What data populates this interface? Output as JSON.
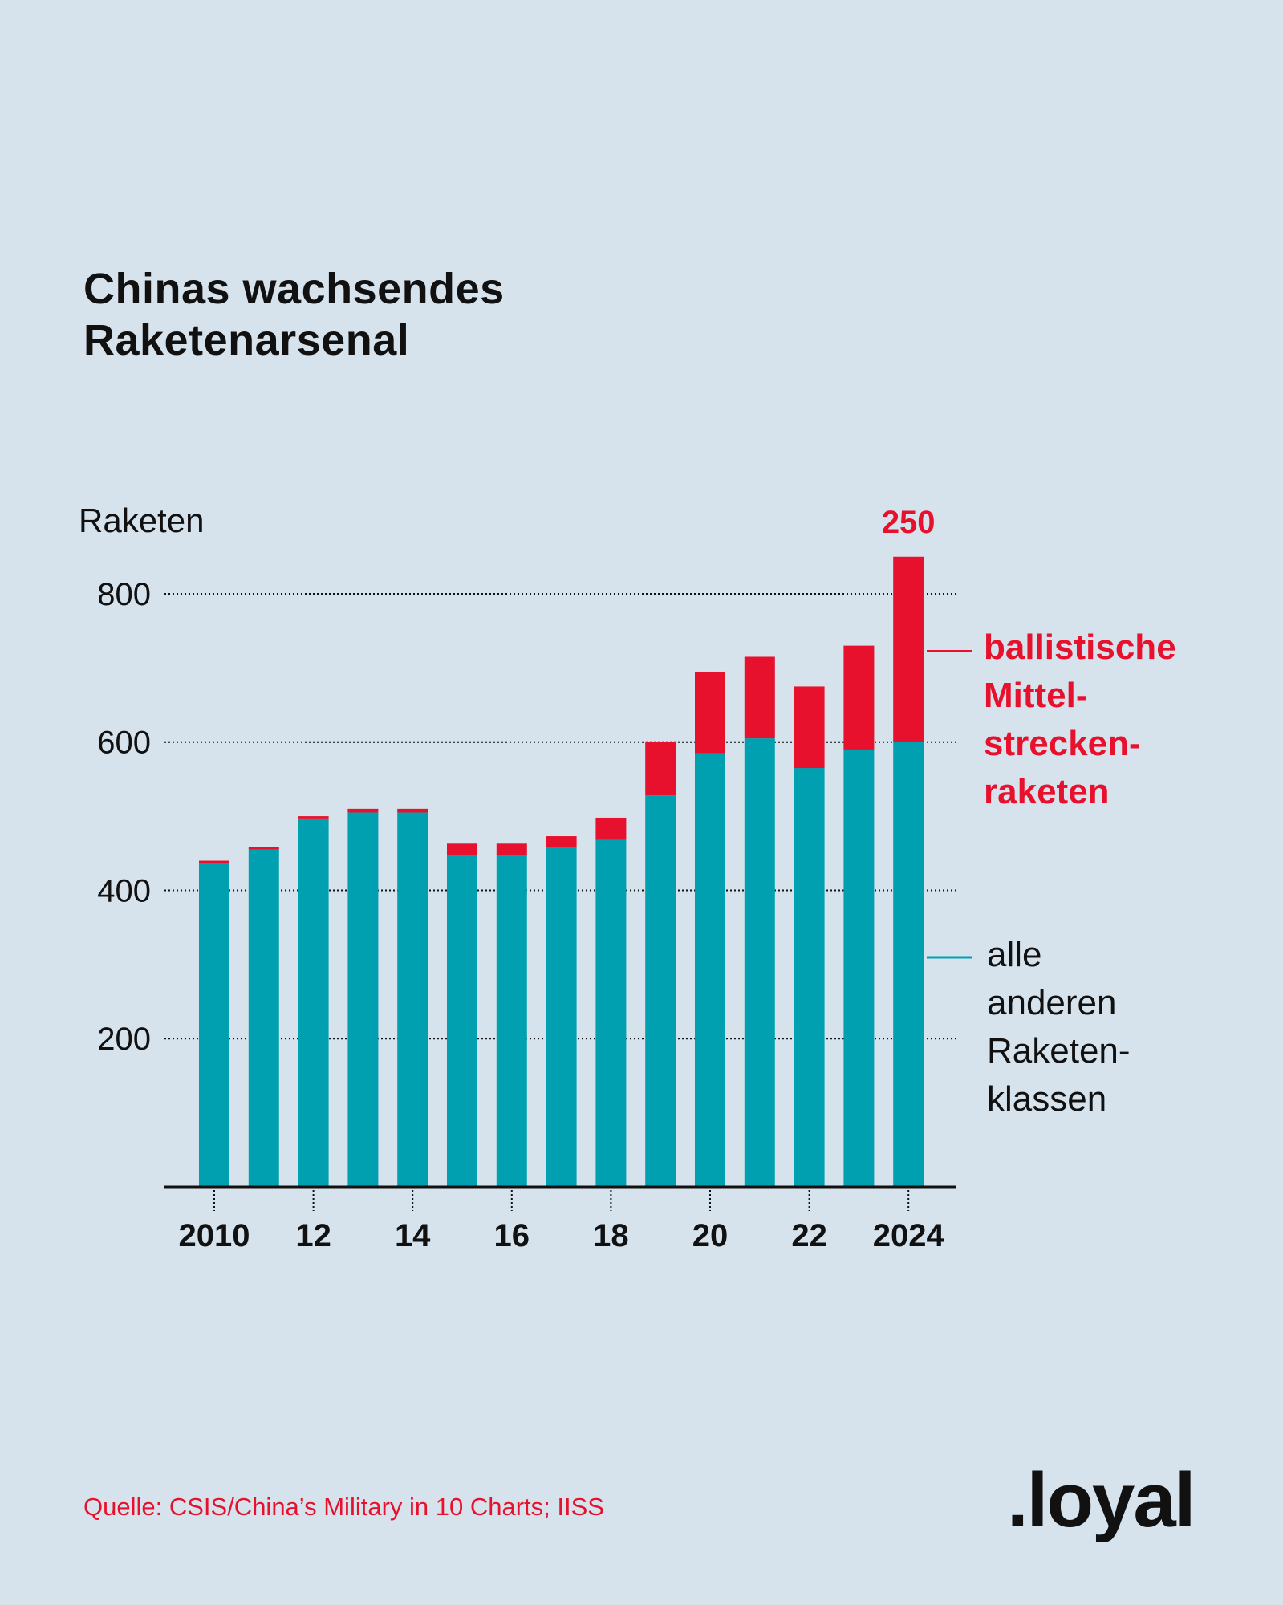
{
  "title_lines": [
    "Chinas wachsendes",
    "Raketenarsenal"
  ],
  "source": "Quelle: CSIS/China’s Military in 10 Charts; IISS",
  "logo": ".loyal",
  "legend": {
    "red_lines": [
      "ballistische",
      "Mittel-",
      "strecken-",
      "raketen"
    ],
    "teal_lines": [
      "alle",
      "anderen",
      "Raketen-",
      "klassen"
    ]
  },
  "colors": {
    "red": "#e8112d",
    "teal": "#00a0b0",
    "background": "#d7e3ec",
    "text": "#111111"
  },
  "chart_data": {
    "type": "bar",
    "stacked": true,
    "ylabel": "Raketen",
    "ylim": [
      0,
      850
    ],
    "yticks": [
      200,
      400,
      600,
      800
    ],
    "grid": "dotted-horizontal",
    "x": [
      2010,
      2011,
      2012,
      2013,
      2014,
      2015,
      2016,
      2017,
      2018,
      2019,
      2020,
      2021,
      2022,
      2023,
      2024
    ],
    "xtick_labels": [
      {
        "x": 2010,
        "label": "2010"
      },
      {
        "x": 2012,
        "label": "12"
      },
      {
        "x": 2014,
        "label": "14"
      },
      {
        "x": 2016,
        "label": "16"
      },
      {
        "x": 2018,
        "label": "18"
      },
      {
        "x": 2020,
        "label": "20"
      },
      {
        "x": 2022,
        "label": "22"
      },
      {
        "x": 2024,
        "label": "2024"
      }
    ],
    "series": [
      {
        "name": "alle anderen Raketenklassen",
        "color": "#00a0b0",
        "values": [
          437,
          455,
          497,
          505,
          505,
          448,
          448,
          458,
          468,
          528,
          585,
          605,
          565,
          590,
          600
        ]
      },
      {
        "name": "ballistische Mittelstreckenraketen",
        "color": "#e8112d",
        "values": [
          3,
          3,
          3,
          5,
          5,
          15,
          15,
          15,
          30,
          72,
          110,
          110,
          110,
          140,
          250
        ]
      }
    ],
    "annotations": [
      {
        "x": 2024,
        "series": "ballistische Mittelstreckenraketen",
        "text": "250"
      }
    ]
  }
}
